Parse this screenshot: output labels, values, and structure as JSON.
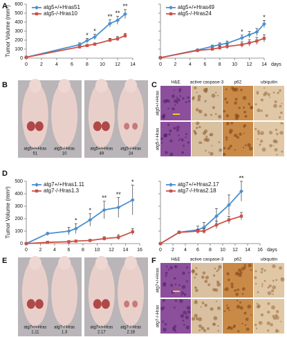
{
  "panel_labels": [
    "A",
    "B",
    "C",
    "D",
    "E",
    "F"
  ],
  "chart_data": [
    {
      "type": "line",
      "y_label": "Tumor Volume (mm³)",
      "x": [
        0,
        7,
        8,
        9,
        11,
        12,
        13
      ],
      "xlim": [
        0,
        14
      ],
      "xticks": [
        0,
        2,
        4,
        6,
        8,
        10,
        12,
        14
      ],
      "ylim": [
        0,
        600
      ],
      "yticks": [
        0,
        100,
        200,
        300,
        400,
        500,
        600
      ],
      "ytick_labels": true,
      "series": [
        {
          "name": "atg5+/+Hras51",
          "color": "#4a8fd0",
          "marker": "diamond",
          "values": [
            10,
            150,
            195,
            235,
            385,
            420,
            490
          ],
          "errors": [
            5,
            20,
            25,
            30,
            40,
            45,
            50
          ]
        },
        {
          "name": "atg5-/-Hras10",
          "color": "#cc5248",
          "marker": "square",
          "values": [
            10,
            125,
            140,
            155,
            200,
            215,
            250
          ],
          "errors": [
            5,
            15,
            15,
            15,
            20,
            25,
            25
          ]
        }
      ],
      "significance": [
        null,
        null,
        "*",
        "*",
        "**",
        "**",
        "**"
      ]
    },
    {
      "type": "line",
      "x_label": "days",
      "x": [
        0,
        5,
        7,
        8,
        9,
        11,
        12,
        13,
        14
      ],
      "xlim": [
        0,
        14
      ],
      "xticks": [
        0,
        2,
        4,
        6,
        8,
        10,
        12,
        14
      ],
      "ylim": [
        0,
        600
      ],
      "yticks": [
        0,
        100,
        200,
        300,
        400,
        500,
        600
      ],
      "ytick_labels": false,
      "series": [
        {
          "name": "atg5+/+Hras49",
          "color": "#4a8fd0",
          "marker": "diamond",
          "values": [
            5,
            90,
            130,
            150,
            165,
            225,
            260,
            290,
            380
          ],
          "errors": [
            5,
            10,
            15,
            20,
            25,
            30,
            35,
            40,
            40
          ]
        },
        {
          "name": "atg5-/-Hras24",
          "color": "#cc5248",
          "marker": "square",
          "values": [
            5,
            85,
            100,
            115,
            130,
            150,
            170,
            190,
            220
          ],
          "errors": [
            5,
            10,
            15,
            20,
            25,
            30,
            35,
            40,
            40
          ]
        }
      ],
      "significance": [
        null,
        null,
        null,
        null,
        null,
        "*",
        null,
        null,
        "*"
      ]
    },
    {
      "type": "line",
      "y_label": "Tumor Volume (mm³)",
      "x": [
        0,
        3,
        6,
        7,
        9,
        11,
        13,
        15
      ],
      "xlim": [
        0,
        16
      ],
      "xticks": [
        0,
        2,
        4,
        6,
        8,
        10,
        12,
        14,
        16
      ],
      "ylim": [
        0,
        500
      ],
      "yticks": [
        0,
        100,
        200,
        300,
        400,
        500
      ],
      "ytick_labels": true,
      "series": [
        {
          "name": "atg7+/+Hras1.11",
          "color": "#4a8fd0",
          "marker": "diamond",
          "values": [
            0,
            80,
            100,
            120,
            190,
            270,
            290,
            350
          ],
          "errors": [
            0,
            10,
            30,
            40,
            50,
            70,
            80,
            120
          ]
        },
        {
          "name": "atg7-/-Hras1.3",
          "color": "#cc5248",
          "marker": "square",
          "values": [
            0,
            10,
            15,
            20,
            25,
            40,
            50,
            95
          ],
          "errors": [
            0,
            5,
            5,
            5,
            10,
            15,
            20,
            25
          ]
        }
      ],
      "significance": [
        null,
        null,
        null,
        "*",
        "*",
        "**",
        "**",
        "*"
      ]
    },
    {
      "type": "line",
      "x_label": "days",
      "x": [
        0,
        3,
        6,
        7,
        9,
        11,
        13
      ],
      "xlim": [
        0,
        16
      ],
      "xticks": [
        0,
        2,
        4,
        6,
        8,
        10,
        12,
        14,
        16
      ],
      "ylim": [
        0,
        500
      ],
      "yticks": [
        0,
        100,
        200,
        300,
        400,
        500
      ],
      "ytick_labels": false,
      "series": [
        {
          "name": "atg7+/+Hras2.17",
          "color": "#4a8fd0",
          "marker": "diamond",
          "values": [
            0,
            90,
            110,
            130,
            220,
            310,
            420
          ],
          "errors": [
            0,
            10,
            30,
            40,
            60,
            80,
            80
          ]
        },
        {
          "name": "atg7-/-Hras2.18",
          "color": "#cc5248",
          "marker": "square",
          "values": [
            0,
            90,
            100,
            100,
            150,
            190,
            220
          ],
          "errors": [
            0,
            10,
            15,
            20,
            30,
            30,
            30
          ]
        }
      ],
      "significance": [
        null,
        null,
        null,
        null,
        null,
        null,
        "**"
      ]
    }
  ],
  "panel_b": {
    "captions": [
      {
        "genotype": "atg5+/+Hras",
        "id": "51"
      },
      {
        "genotype": "atg5-/-Hras",
        "id": "10"
      },
      {
        "genotype": "atg5+/+Hras",
        "id": "49"
      },
      {
        "genotype": "atg5-/-Hras",
        "id": "24"
      }
    ]
  },
  "panel_c": {
    "columns": [
      "H&E",
      "active caspase-3",
      "p62",
      "ubiquitin"
    ],
    "rows": [
      "atg5+/+Hras",
      "atg5-/-Hras"
    ]
  },
  "panel_e": {
    "captions": [
      {
        "genotype": "atg7+/+Hras",
        "id": "1.11"
      },
      {
        "genotype": "atg7-/-Hras",
        "id": "1.3"
      },
      {
        "genotype": "atg7+/+Hras",
        "id": "2.17"
      },
      {
        "genotype": "atg7-/-Hras",
        "id": "2.18"
      }
    ]
  },
  "panel_f": {
    "columns": [
      "H&E",
      "active caspase-3",
      "p62",
      "ubiquitin"
    ],
    "rows": [
      "atg7+/+Hras",
      "atg7-/-Hras"
    ]
  }
}
